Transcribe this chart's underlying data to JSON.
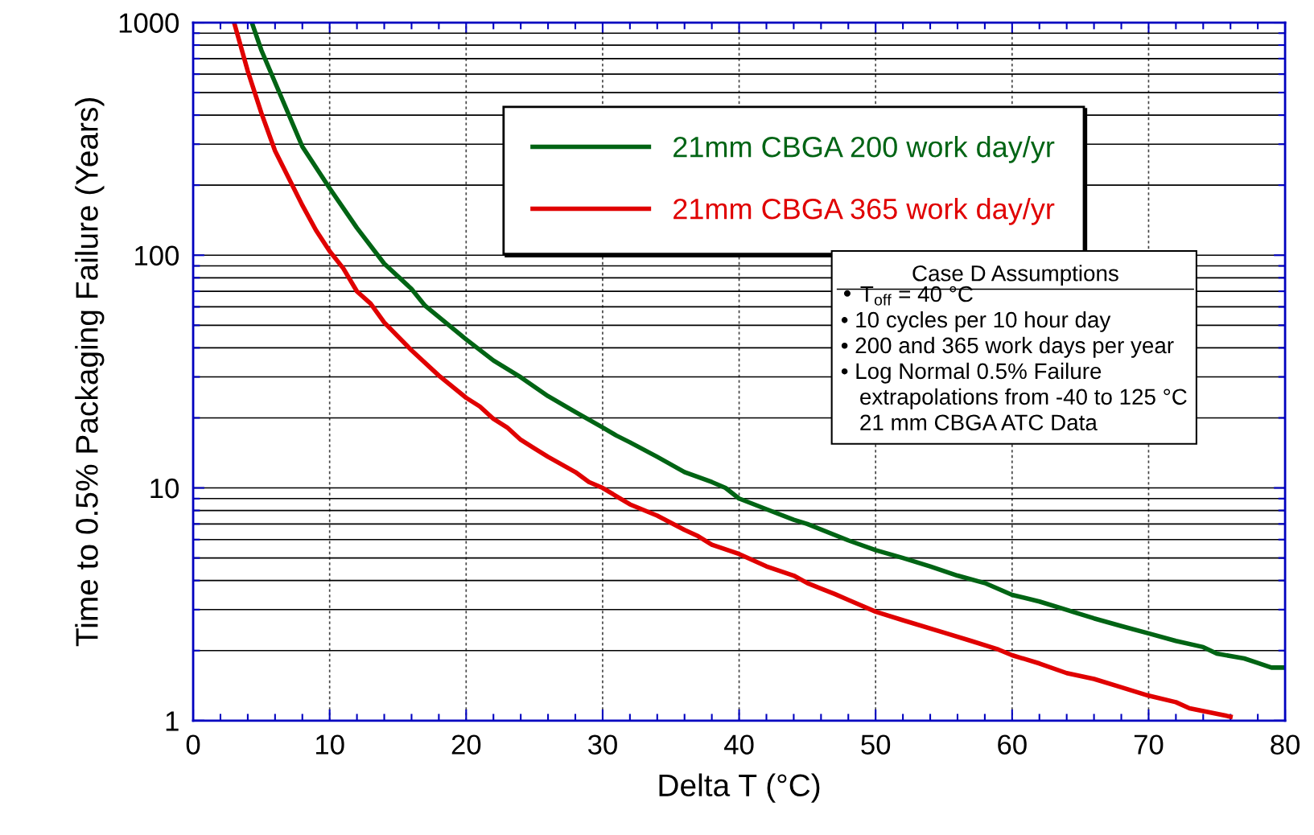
{
  "chart_data": {
    "type": "line",
    "xlabel": "Delta T (°C)",
    "ylabel": "Time to 0.5% Packaging Failure (Years)",
    "log": "y",
    "xlim": [
      0,
      80
    ],
    "ylim": [
      1,
      1000
    ],
    "xticks": [
      0,
      10,
      20,
      30,
      40,
      50,
      60,
      70,
      80
    ],
    "yticks": [
      1,
      10,
      100,
      1000
    ],
    "grid": true,
    "legend": "top",
    "line_style": "solid",
    "marker": "none",
    "annotations": [
      "Case D Assumptions",
      "• T$_{off}$ = 40 °C\n• 10 cycles per 10 hour day\n• 200 and 365 work days per year\n• Log Normal 0.5% Failure\n   extrapolations from -40 to 125 °C\n   21 mm CBGA ATC Data"
    ],
    "series": [
      {
        "name": "21mm CBGA 200 work day/yr",
        "color": "#006414",
        "x": [
          4.3,
          5,
          8,
          10,
          12,
          14,
          16,
          17,
          20,
          22,
          24,
          26,
          28,
          30,
          31,
          32,
          34,
          36,
          38,
          39,
          40,
          42,
          44,
          45,
          48,
          50,
          52,
          54,
          56,
          58,
          60,
          62,
          64,
          66,
          68,
          70,
          72,
          74,
          75,
          77,
          78,
          79,
          80
        ],
        "values": [
          1000,
          760,
          293,
          194,
          131,
          92,
          71.6,
          60.6,
          43.5,
          35.3,
          29.9,
          24.8,
          21.2,
          18.2,
          16.8,
          15.7,
          13.6,
          11.7,
          10.6,
          10.0,
          9.0,
          8.1,
          7.3,
          7.0,
          5.95,
          5.4,
          5.0,
          4.6,
          4.2,
          3.9,
          3.47,
          3.25,
          2.99,
          2.75,
          2.55,
          2.37,
          2.2,
          2.07,
          1.94,
          1.85,
          1.77,
          1.69,
          1.69
        ]
      },
      {
        "name": "21mm CBGA 365 work day/yr",
        "color": "#e00000",
        "x": [
          3,
          4,
          5,
          6,
          8,
          9,
          10,
          11,
          12,
          13,
          14,
          16,
          18,
          20,
          21,
          22,
          23,
          24,
          25,
          26,
          28,
          29,
          30,
          32,
          34,
          36,
          37,
          38,
          40,
          42,
          44,
          45,
          47,
          48,
          50,
          52,
          55,
          57,
          59,
          60,
          62,
          64,
          66,
          68,
          70,
          72,
          73,
          76
        ],
        "values": [
          1000,
          619,
          408,
          281,
          164,
          128,
          104,
          87.8,
          69.9,
          62,
          51.4,
          39,
          30.4,
          24.4,
          22.4,
          19.8,
          18.2,
          16.1,
          14.8,
          13.6,
          11.7,
          10.6,
          10.0,
          8.5,
          7.6,
          6.6,
          6.2,
          5.7,
          5.2,
          4.6,
          4.2,
          3.9,
          3.5,
          3.3,
          2.94,
          2.7,
          2.39,
          2.2,
          2.02,
          1.91,
          1.76,
          1.6,
          1.51,
          1.39,
          1.28,
          1.2,
          1.13,
          1.04
        ]
      }
    ]
  }
}
